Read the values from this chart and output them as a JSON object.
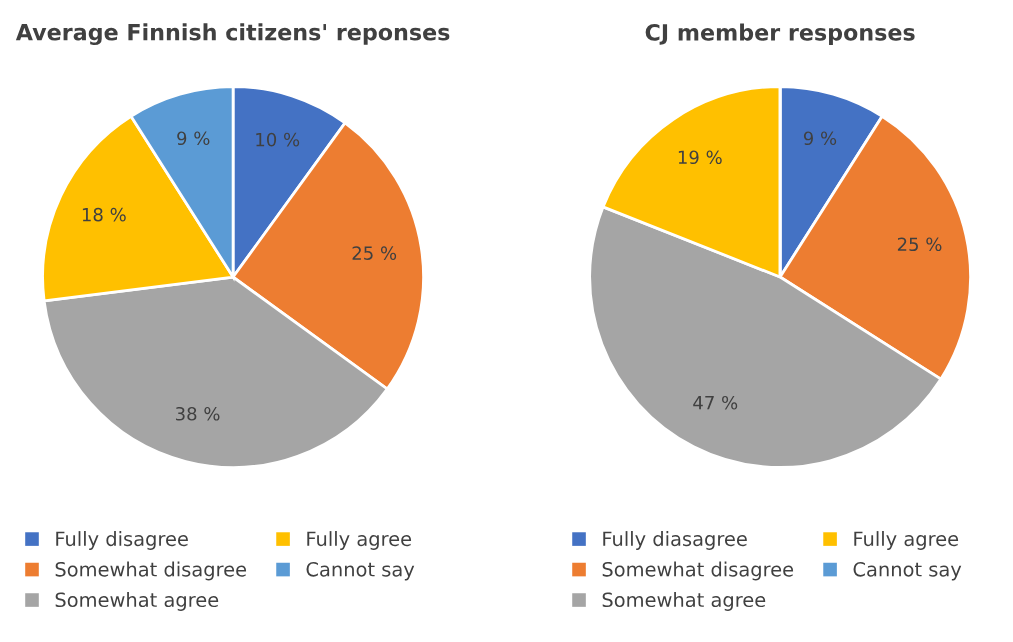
{
  "chart_data": [
    {
      "type": "pie",
      "title": "Average Finnish citizens' reponses",
      "categories": [
        "Fully disagree",
        "Somewhat disagree",
        "Somewhat agree",
        "Fully agree",
        "Cannot say"
      ],
      "values": [
        10,
        25,
        38,
        18,
        9
      ],
      "colors": [
        "#4472c4",
        "#ed7d31",
        "#a5a5a5",
        "#ffc000",
        "#5b9bd5"
      ],
      "value_labels": [
        "10 %",
        "25 %",
        "38 %",
        "18 %",
        "9 %"
      ],
      "legend": "bottom"
    },
    {
      "type": "pie",
      "title": "CJ member responses",
      "categories": [
        "Fully diasagree",
        "Somewhat disagree",
        "Somewhat agree",
        "Fully agree",
        "Cannot say"
      ],
      "values": [
        9,
        25,
        47,
        19,
        0
      ],
      "colors": [
        "#4472c4",
        "#ed7d31",
        "#a5a5a5",
        "#ffc000",
        "#5b9bd5"
      ],
      "value_labels": [
        "9 %",
        "25 %",
        "47 %",
        "19 %",
        null
      ],
      "legend": "bottom"
    }
  ]
}
